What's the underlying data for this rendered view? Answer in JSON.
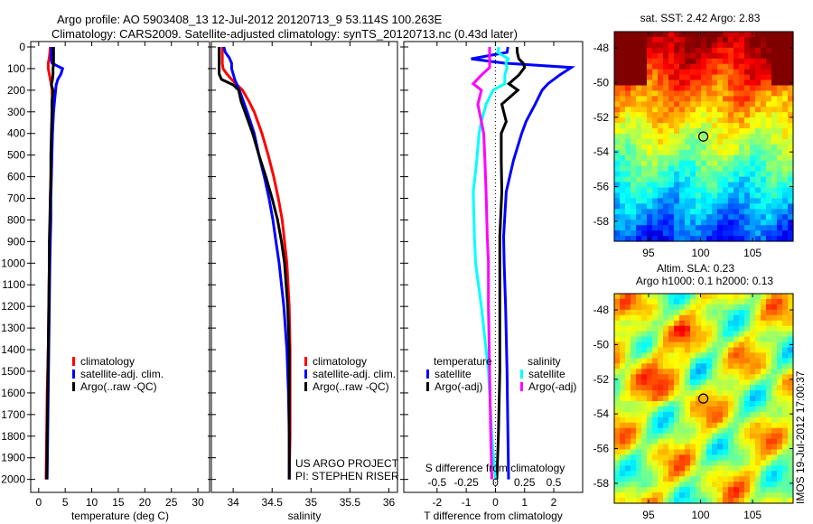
{
  "title": {
    "line1": "Argo profile: AO 5903408_13 12-Jul-2012 20120713_9 53.114S 100.263E",
    "line2": "Climatology: CARS2009. Satellite-adjusted climatology: synTS_20120713.nc (0.43d later)"
  },
  "colors": {
    "climatology": "#ff0000",
    "satellite": "#0000ff",
    "argo": "#000000",
    "sal_satellite": "#00ffff",
    "sal_argo": "#ff00ff"
  },
  "credits": {
    "project": "US ARGO PROJECT",
    "pi": "PI: STEPHEN RISER",
    "imos": "IMOS 19-Jul-2012 17:00:37"
  },
  "chart_data": [
    {
      "type": "line",
      "id": "temperature",
      "xlabel": "temperature (deg C)",
      "xlim": [
        -1.5,
        32.2
      ],
      "ylim": [
        2060,
        -25
      ],
      "xticks": [
        0,
        5,
        10,
        15,
        20,
        25,
        30
      ],
      "yticks": [
        0,
        100,
        200,
        300,
        400,
        500,
        600,
        700,
        800,
        900,
        1000,
        1100,
        1200,
        1300,
        1400,
        1500,
        1600,
        1700,
        1800,
        1900,
        2000
      ],
      "depth": [
        0,
        25,
        50,
        75,
        100,
        125,
        150,
        175,
        200,
        250,
        300,
        400,
        500,
        600,
        700,
        800,
        900,
        1000,
        1200,
        1400,
        1600,
        1800,
        2000
      ],
      "legend": [
        "climatology",
        "satellite-adj. clim.",
        "Argo(..raw -QC)"
      ],
      "series": [
        {
          "name": "climatology",
          "color": "#ff0000",
          "values": [
            2.2,
            2.1,
            2.0,
            1.8,
            1.8,
            2.0,
            2.2,
            2.4,
            2.5,
            2.6,
            2.6,
            2.5,
            2.4,
            2.3,
            2.2,
            2.2,
            2.1,
            2.0,
            1.9,
            1.8,
            1.6,
            1.5,
            1.4
          ]
        },
        {
          "name": "satellite-adj. clim.",
          "color": "#0000ff",
          "values": [
            2.4,
            2.4,
            2.3,
            2.5,
            4.5,
            4.2,
            3.6,
            3.3,
            3.2,
            3.0,
            2.8,
            2.6,
            2.5,
            2.4,
            2.3,
            2.3,
            2.2,
            2.1,
            2.0,
            1.9,
            1.8,
            1.7,
            1.6
          ]
        },
        {
          "name": "Argo(..raw -QC)",
          "color": "#000000",
          "values": [
            2.8,
            2.8,
            2.8,
            2.8,
            2.7,
            2.7,
            2.6,
            2.4,
            2.7,
            2.5,
            2.5,
            2.4,
            2.3,
            2.3,
            2.2,
            2.1,
            2.0,
            2.0,
            1.9,
            1.8,
            1.7,
            1.6,
            1.5
          ]
        }
      ]
    },
    {
      "type": "line",
      "id": "salinity",
      "xlabel": "salinity",
      "xlim": [
        33.72,
        36.11
      ],
      "ylim": [
        2060,
        -25
      ],
      "xticks": [
        34,
        34.5,
        35,
        35.5,
        36
      ],
      "depth": [
        0,
        25,
        50,
        75,
        100,
        125,
        150,
        175,
        200,
        250,
        300,
        400,
        500,
        600,
        700,
        800,
        900,
        1000,
        1200,
        1400,
        1600,
        1800,
        2000
      ],
      "legend": [
        "climatology",
        "satellite-adj. clim.",
        "Argo(..raw -QC)"
      ],
      "series": [
        {
          "name": "climatology",
          "color": "#ff0000",
          "values": [
            33.86,
            33.86,
            33.86,
            33.86,
            33.87,
            33.92,
            33.98,
            34.05,
            34.12,
            34.2,
            34.27,
            34.37,
            34.45,
            34.52,
            34.58,
            34.63,
            34.66,
            34.69,
            34.72,
            34.73,
            34.73,
            34.73,
            34.72
          ]
        },
        {
          "name": "satellite-adj. clim.",
          "color": "#0000ff",
          "values": [
            33.88,
            33.9,
            33.95,
            33.98,
            33.98,
            34.0,
            34.02,
            34.05,
            34.08,
            34.13,
            34.18,
            34.27,
            34.33,
            34.4,
            34.46,
            34.51,
            34.55,
            34.59,
            34.65,
            34.69,
            34.71,
            34.72,
            34.72
          ]
        },
        {
          "name": "Argo(..raw -QC)",
          "color": "#000000",
          "values": [
            33.82,
            33.82,
            33.82,
            33.82,
            33.82,
            33.82,
            33.85,
            34.0,
            34.07,
            34.1,
            34.15,
            34.25,
            34.33,
            34.42,
            34.5,
            34.57,
            34.62,
            34.66,
            34.7,
            34.72,
            34.72,
            34.72,
            34.72
          ]
        }
      ]
    },
    {
      "type": "line",
      "id": "difference",
      "xlabel": "T difference from climatology",
      "x2label": "S difference from climatology",
      "xlim": [
        -3.14,
        2.99
      ],
      "x2lim": [
        -0.785,
        0.7475
      ],
      "ylim": [
        2060,
        -25
      ],
      "xticks": [
        -2,
        -1,
        0,
        1,
        2
      ],
      "x2ticks": [
        "-0.5",
        "-0.25",
        "0",
        "0.25",
        "0.5"
      ],
      "x2tick_values": [
        -0.5,
        -0.25,
        0,
        0.25,
        0.5
      ],
      "legend_headers": [
        "temperature",
        "salinity"
      ],
      "legend": [
        "satellite",
        "Argo(-adj)",
        "satellite",
        "Argo(-adj)"
      ],
      "depth": [
        0,
        25,
        55,
        75,
        95,
        130,
        170,
        200,
        265,
        345,
        400,
        525,
        670,
        877,
        1000,
        1200,
        1500,
        1800,
        2000
      ],
      "series": [
        {
          "name": "T satellite",
          "axis": "T",
          "color": "#0000ff",
          "values": [
            0.43,
            0.4,
            -0.83,
            0.3,
            2.6,
            2.2,
            1.8,
            1.6,
            1.36,
            1.05,
            0.9,
            0.62,
            0.37,
            0.28,
            0.3,
            0.35,
            0.4,
            0.43,
            0.45
          ]
        },
        {
          "name": "T Argo(-adj)",
          "axis": "T",
          "color": "#000000",
          "values": [
            0.74,
            0.75,
            0.8,
            0.95,
            1.0,
            0.8,
            0.46,
            0.77,
            0.22,
            0.37,
            0.2,
            0.2,
            0.22,
            0.15,
            0.15,
            0.15,
            0.15,
            0.1,
            0.05
          ]
        },
        {
          "name": "S satellite",
          "axis": "S",
          "color": "#00ffff",
          "values": [
            0.03,
            0.02,
            0.11,
            0.09,
            0.1,
            0.08,
            0.08,
            -0.02,
            -0.08,
            -0.12,
            -0.14,
            -0.16,
            -0.19,
            -0.18,
            -0.17,
            -0.12,
            -0.06,
            -0.03,
            0.0
          ]
        },
        {
          "name": "S Argo(-adj)",
          "axis": "S",
          "color": "#ff00ff",
          "values": [
            -0.05,
            -0.05,
            -0.05,
            -0.05,
            -0.05,
            -0.12,
            -0.19,
            -0.12,
            -0.15,
            -0.12,
            -0.1,
            -0.09,
            -0.08,
            -0.07,
            -0.06,
            -0.06,
            -0.05,
            -0.04,
            -0.03
          ]
        }
      ]
    },
    {
      "type": "heatmap",
      "id": "sst-map",
      "title": "sat. SST: 2.42 Argo: 2.83",
      "xlim": [
        91.7,
        108.9
      ],
      "ylim": [
        -59.15,
        -47.06
      ],
      "xticks": [
        95,
        100,
        105
      ],
      "yticks": [
        -48,
        -50,
        -52,
        -54,
        -56,
        -58
      ],
      "marker": {
        "lon": 100.263,
        "lat": -53.114
      }
    },
    {
      "type": "heatmap",
      "id": "sla-map",
      "title": "Altim. SLA: 0.23",
      "subtitle": "Argo h1000: 0.1 h2000: 0.13",
      "xlim": [
        91.7,
        108.9
      ],
      "ylim": [
        -59.15,
        -47.06
      ],
      "xticks": [
        95,
        100,
        105
      ],
      "yticks": [
        -48,
        -50,
        -52,
        -54,
        -56,
        -58
      ],
      "marker": {
        "lon": 100.263,
        "lat": -53.114
      }
    }
  ]
}
